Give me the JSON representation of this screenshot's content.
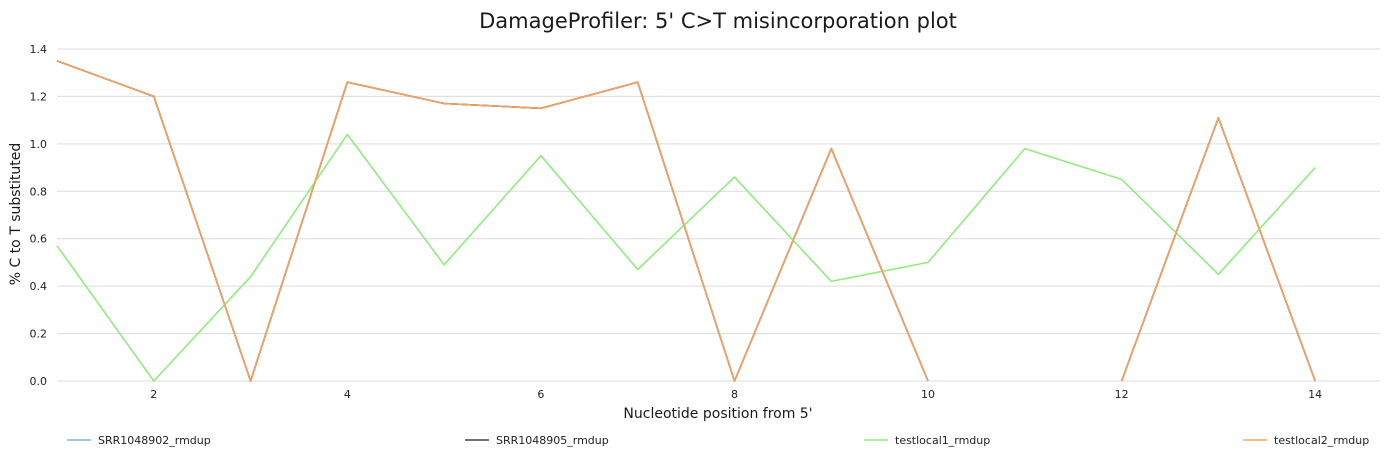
{
  "chart_data": {
    "type": "line",
    "title": "DamageProfiler: 5' C>T misincorporation plot",
    "xlabel": "Nucleotide position from 5'",
    "ylabel": "% C to T substituted",
    "xlim": [
      1,
      14.67
    ],
    "ylim": [
      0,
      1.4
    ],
    "x_ticks": [
      2,
      4,
      6,
      8,
      10,
      12,
      14
    ],
    "y_ticks": [
      0,
      0.2,
      0.4,
      0.6,
      0.8,
      1.0,
      1.2,
      1.4
    ],
    "y_tick_labels": [
      "0.0",
      "0.2",
      "0.4",
      "0.6",
      "0.8",
      "1.0",
      "1.2",
      "1.4"
    ],
    "grid": true,
    "legend_position": "bottom",
    "x": [
      1,
      2,
      3,
      4,
      5,
      6,
      7,
      8,
      9,
      10,
      11,
      12,
      13,
      14
    ],
    "series": [
      {
        "name": "SRR1048902_rmdup",
        "color": "#7cb5ec",
        "values": [
          1.35,
          1.2,
          0.0,
          1.26,
          1.17,
          1.15,
          1.26,
          0.0,
          0.98,
          0.0,
          null,
          0.0,
          1.11,
          0.0
        ]
      },
      {
        "name": "SRR1048905_rmdup",
        "color": "#434348",
        "values": [
          1.35,
          1.2,
          0.0,
          1.26,
          1.17,
          1.15,
          1.26,
          0.0,
          0.98,
          0.0,
          null,
          0.0,
          1.11,
          0.0
        ]
      },
      {
        "name": "testlocal1_rmdup",
        "color": "#90ed7d",
        "values": [
          0.57,
          0.0,
          0.44,
          1.04,
          0.49,
          0.95,
          0.47,
          0.86,
          0.42,
          0.5,
          0.98,
          0.85,
          0.45,
          0.9
        ]
      },
      {
        "name": "testlocal2_rmdup",
        "color": "#f7a35c",
        "values": [
          1.35,
          1.2,
          0.0,
          1.26,
          1.17,
          1.15,
          1.26,
          0.0,
          0.98,
          0.0,
          null,
          0.0,
          1.11,
          0.0
        ]
      }
    ]
  }
}
